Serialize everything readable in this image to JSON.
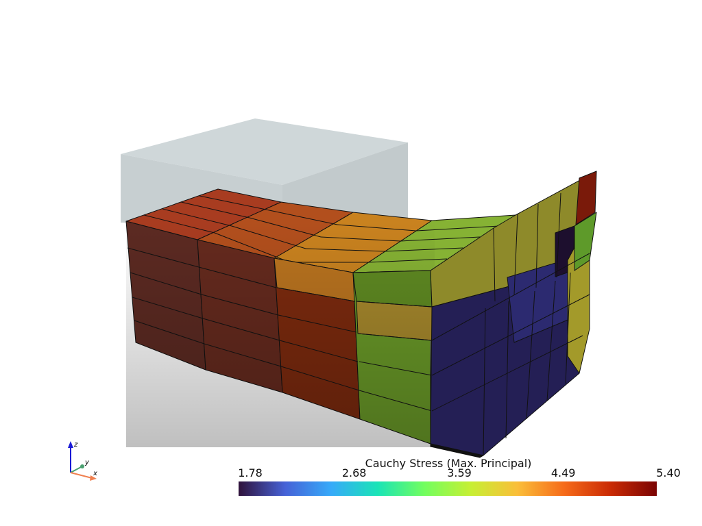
{
  "colorbar": {
    "title": "Cauchy Stress (Max. Principal)",
    "ticks": [
      1.78,
      2.68,
      3.59,
      4.49,
      {
        "value": 5.4,
        "label": "5.40"
      }
    ],
    "colormap": [
      "#30123b",
      "#4662d7",
      "#36aaf9",
      "#1ae4b6",
      "#72fe5e",
      "#c7ef34",
      "#fabe39",
      "#f66b19",
      "#ca2a04",
      "#7a0403"
    ]
  },
  "axes_widget": {
    "x": "x",
    "y": "y",
    "z": "z"
  }
}
